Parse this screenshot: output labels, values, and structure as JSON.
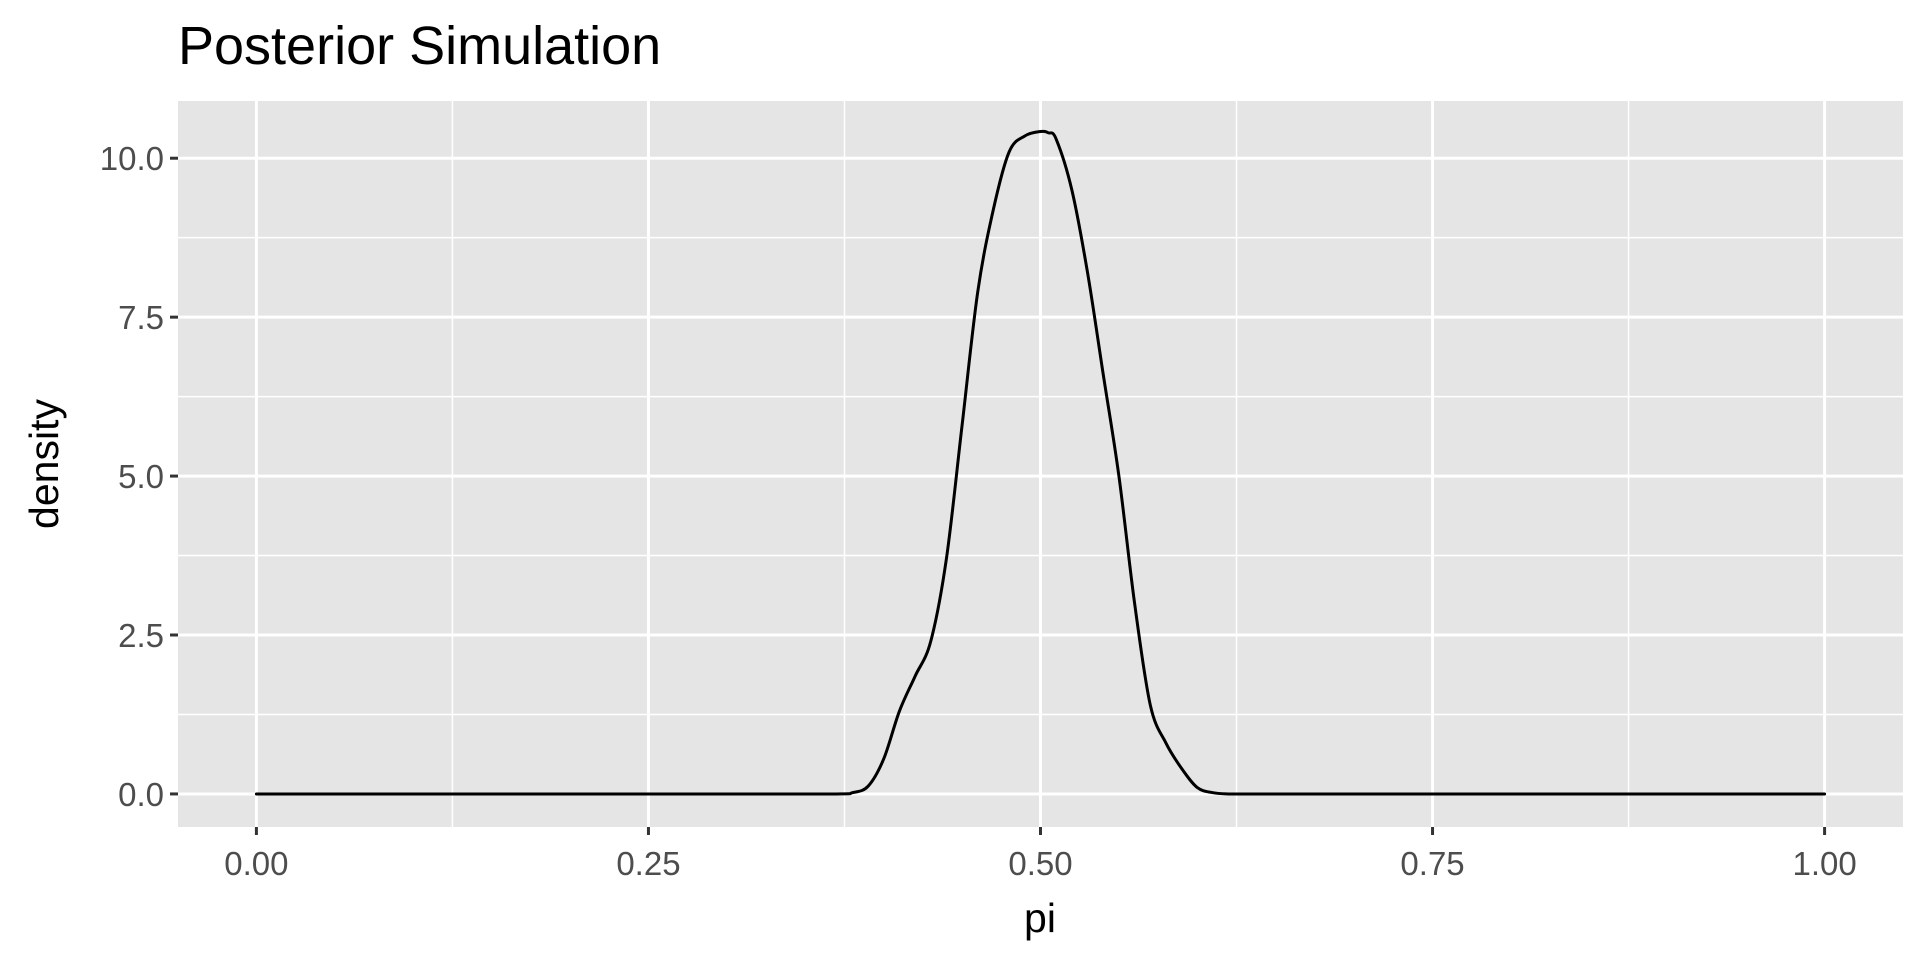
{
  "chart_data": {
    "type": "line",
    "title": "Posterior Simulation",
    "xlabel": "pi",
    "ylabel": "density",
    "xlim": [
      -0.05,
      1.05
    ],
    "ylim": [
      -0.52,
      10.9
    ],
    "x_ticks": [
      0.0,
      0.25,
      0.5,
      0.75,
      1.0
    ],
    "x_tick_labels": [
      "0.00",
      "0.25",
      "0.50",
      "0.75",
      "1.00"
    ],
    "y_ticks": [
      0.0,
      2.5,
      5.0,
      7.5,
      10.0
    ],
    "y_tick_labels": [
      "0.0",
      "2.5",
      "5.0",
      "7.5",
      "10.0"
    ],
    "grid": true,
    "legend": "none",
    "series": [
      {
        "color": "#000000",
        "x": [
          0.0,
          0.3,
          0.37,
          0.38,
          0.39,
          0.4,
          0.41,
          0.42,
          0.43,
          0.44,
          0.45,
          0.46,
          0.47,
          0.48,
          0.49,
          0.5,
          0.505,
          0.51,
          0.52,
          0.53,
          0.54,
          0.55,
          0.56,
          0.57,
          0.58,
          0.59,
          0.6,
          0.61,
          0.62,
          0.63,
          0.7,
          1.0
        ],
        "y": [
          0.0,
          0.0,
          0.0,
          0.02,
          0.12,
          0.55,
          1.3,
          1.85,
          2.4,
          3.7,
          5.8,
          7.9,
          9.2,
          10.1,
          10.35,
          10.42,
          10.4,
          10.3,
          9.5,
          8.2,
          6.6,
          5.0,
          3.0,
          1.4,
          0.8,
          0.4,
          0.1,
          0.02,
          0.0,
          0.0,
          0.0,
          0.0
        ]
      }
    ]
  }
}
